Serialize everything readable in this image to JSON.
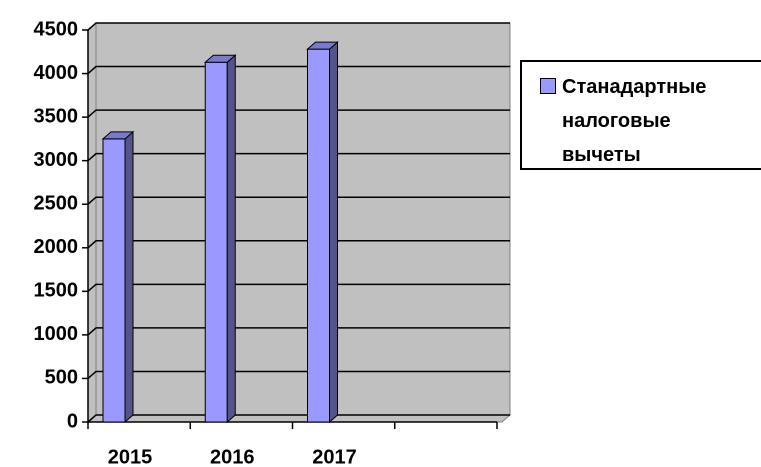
{
  "chart_data": {
    "type": "bar",
    "categories": [
      "2015",
      "2016",
      "2017",
      null
    ],
    "series": [
      {
        "name": "Станадартные налоговые вычеты",
        "color": "#9999ff",
        "values": [
          3250,
          4130,
          4280,
          null
        ]
      }
    ],
    "ylim": [
      0,
      4500
    ],
    "yticks": [
      0,
      500,
      1000,
      1500,
      2000,
      2500,
      3000,
      3500,
      4000,
      4500
    ],
    "grid": true,
    "legend": "right"
  }
}
